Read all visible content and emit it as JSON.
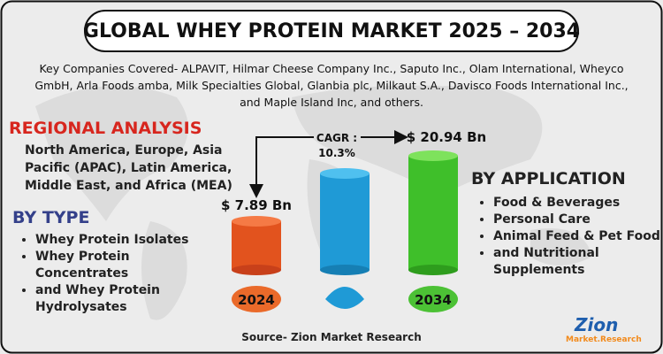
{
  "header": {
    "title": "GLOBAL WHEY PROTEIN MARKET 2025 – 2034"
  },
  "companies": [
    "Key Companies Covered- ALPAVIT, Hilmar Cheese Company Inc., Saputo Inc., Olam International, Wheyco",
    "GmbH, Arla Foods amba, Milk Specialties Global, Glanbia plc, Milkaut S.A., Davisco Foods International Inc.,",
    "and Maple Island Inc, and others."
  ],
  "regional": {
    "heading": "REGIONAL ANALYSIS",
    "text": "North America, Europe, Asia Pacific (APAC), Latin America, Middle East, and Africa (MEA)"
  },
  "by_type": {
    "heading": "BY TYPE",
    "items": [
      "Whey Protein Isolates",
      "Whey Protein Concentrates",
      "and Whey Protein Hydrolysates"
    ]
  },
  "market": {
    "cagr_label": "CAGR :",
    "cagr": "10.3%",
    "start": {
      "year": "2024",
      "value": "$ 7.89 Bn"
    },
    "end": {
      "year": "2034",
      "value": "$ 20.94 Bn"
    }
  },
  "by_application": {
    "heading": "BY APPLICATION",
    "items": [
      "Food & Beverages",
      "Personal Care",
      "Animal Feed & Pet Food",
      "and Nutritional Supplements"
    ]
  },
  "footer": {
    "source": "Source- Zion Market Research",
    "logo": "Zion",
    "logo_sub": "Market.Research"
  }
}
